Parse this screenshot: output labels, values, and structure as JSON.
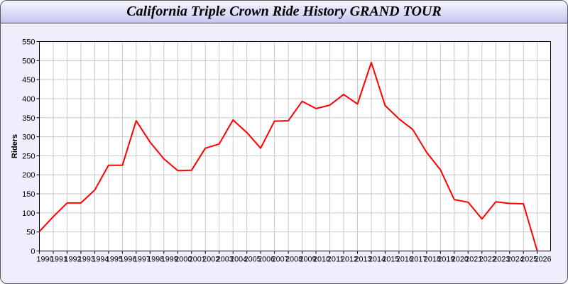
{
  "chart_data": {
    "type": "line",
    "title": "California Triple Crown Ride History GRAND TOUR",
    "xlabel": "",
    "ylabel": "Riders",
    "ylim": [
      0,
      550
    ],
    "yticks": [
      0,
      50,
      100,
      150,
      200,
      250,
      300,
      350,
      400,
      450,
      500,
      550
    ],
    "xlim": [
      1990,
      2027
    ],
    "grid": true,
    "line_color": "#ff0000",
    "x": [
      1990,
      1991,
      1992,
      1993,
      1994,
      1995,
      1996,
      1997,
      1998,
      1999,
      2000,
      2001,
      2002,
      2003,
      2004,
      2005,
      2006,
      2007,
      2008,
      2009,
      2010,
      2011,
      2012,
      2013,
      2014,
      2015,
      2016,
      2017,
      2018,
      2019,
      2020,
      2021,
      2022,
      2023,
      2024,
      2025,
      2026
    ],
    "series": [
      {
        "values": [
          51,
          90,
          126,
          126,
          160,
          225,
          225,
          342,
          286,
          242,
          211,
          212,
          270,
          281,
          344,
          311,
          270,
          341,
          342,
          393,
          374,
          383,
          411,
          386,
          495,
          382,
          347,
          319,
          259,
          213,
          135,
          128,
          84,
          129,
          125,
          124,
          0
        ]
      }
    ]
  }
}
